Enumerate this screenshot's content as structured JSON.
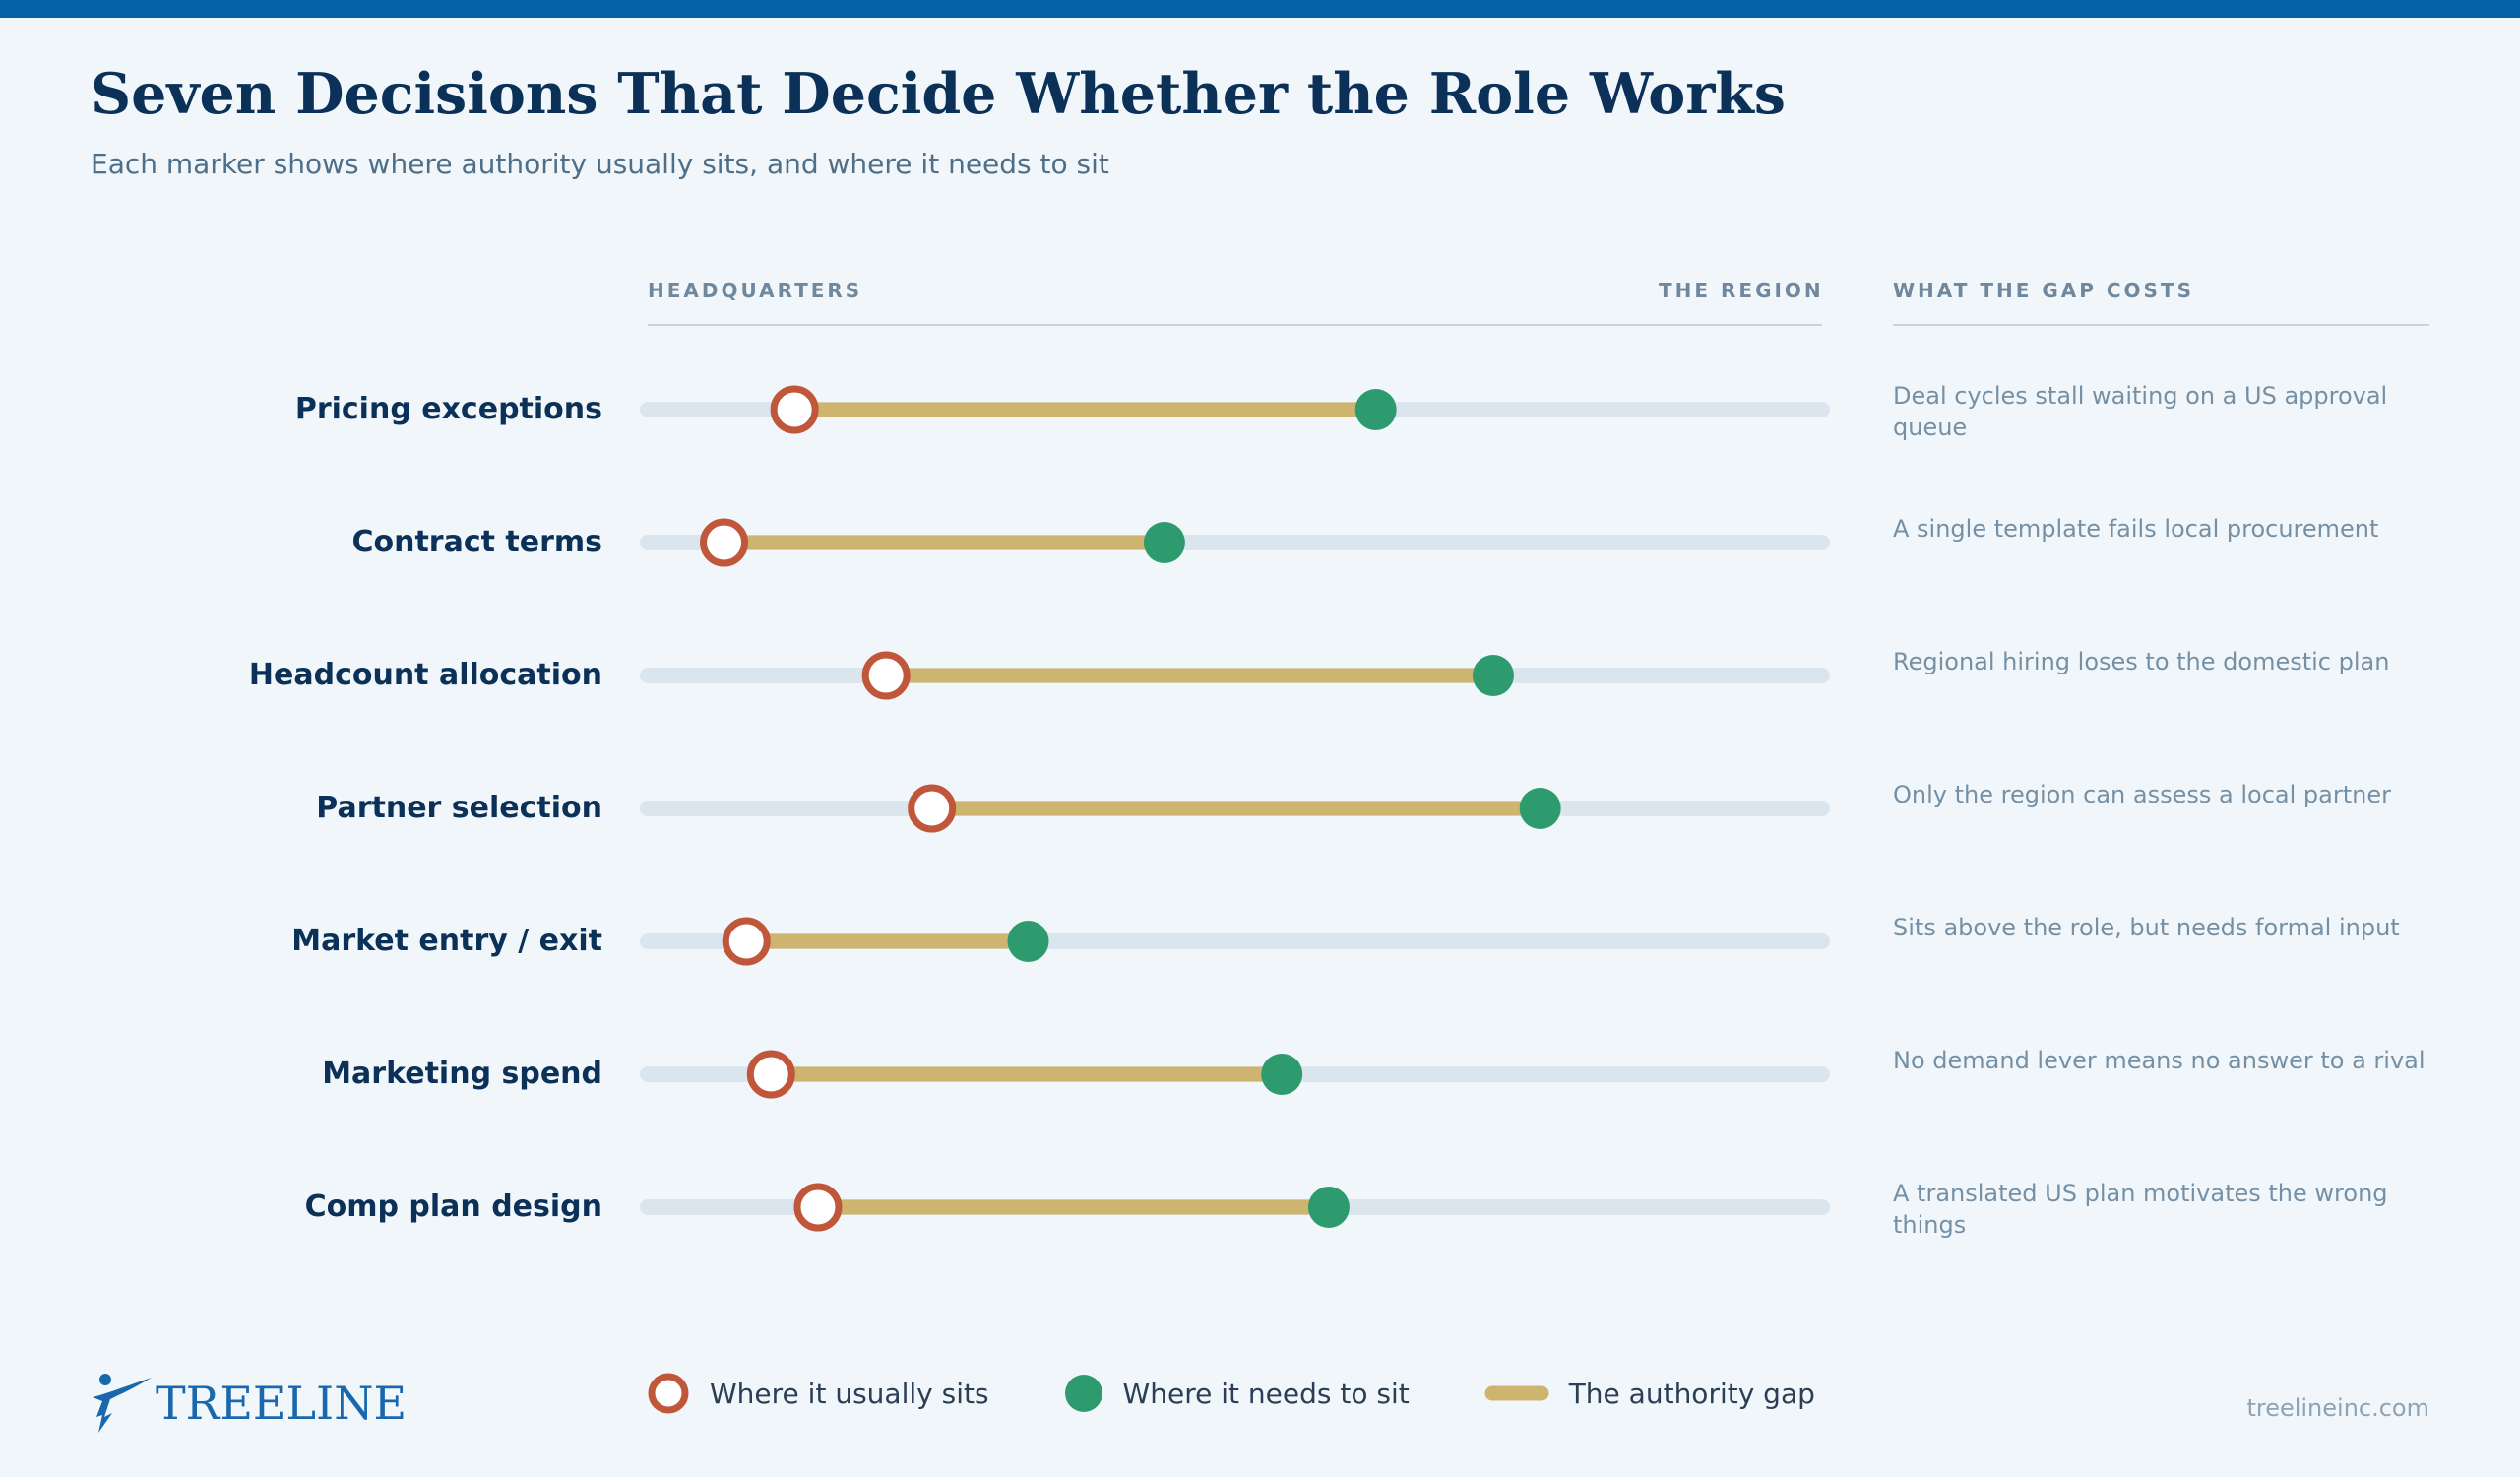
{
  "header": {
    "title": "Seven Decisions That Decide Whether the Role Works",
    "subtitle": "Each marker shows where authority usually sits, and where it needs to sit"
  },
  "columns": {
    "left_axis": "HEADQUARTERS",
    "right_axis": "THE REGION",
    "cost": "WHAT THE GAP COSTS"
  },
  "chart_data": {
    "type": "dumbbell",
    "axis": {
      "min": 0,
      "max": 100,
      "min_label": "HEADQUARTERS",
      "max_label": "THE REGION"
    },
    "series": [
      {
        "name": "Where it usually sits",
        "color": "#c0563a"
      },
      {
        "name": "Where it needs to sit",
        "color": "#2e9b6e"
      },
      {
        "name": "The authority gap",
        "color": "#cdb56f"
      }
    ],
    "rows": [
      {
        "label": "Pricing exceptions",
        "usually": 12.5,
        "needs": 62,
        "cost": "Deal cycles stall waiting on a US approval queue"
      },
      {
        "label": "Contract terms",
        "usually": 6.5,
        "needs": 44,
        "cost": "A single template fails local procurement"
      },
      {
        "label": "Headcount allocation",
        "usually": 20.3,
        "needs": 72,
        "cost": "Regional hiring loses to the domestic plan"
      },
      {
        "label": "Partner selection",
        "usually": 24.2,
        "needs": 76,
        "cost": "Only the region can assess a local partner"
      },
      {
        "label": "Market entry / exit",
        "usually": 8.4,
        "needs": 32.4,
        "cost": "Sits above the role, but needs formal input"
      },
      {
        "label": "Marketing spend",
        "usually": 10.5,
        "needs": 54,
        "cost": "No demand lever means no answer to a rival"
      },
      {
        "label": "Comp plan design",
        "usually": 14.5,
        "needs": 58,
        "cost": "A translated US plan motivates the wrong things"
      }
    ]
  },
  "legend": {
    "usually": "Where it usually sits",
    "needs": "Where it needs to sit",
    "gap": "The authority gap"
  },
  "footer": {
    "logo": "TREELINE",
    "url": "treelineinc.com"
  },
  "colors": {
    "accent": "#0562a8",
    "title": "#0b3158",
    "usually": "#c0563a",
    "needs": "#2e9b6e",
    "gap": "#cdb56f",
    "track": "#dbe5ee"
  }
}
